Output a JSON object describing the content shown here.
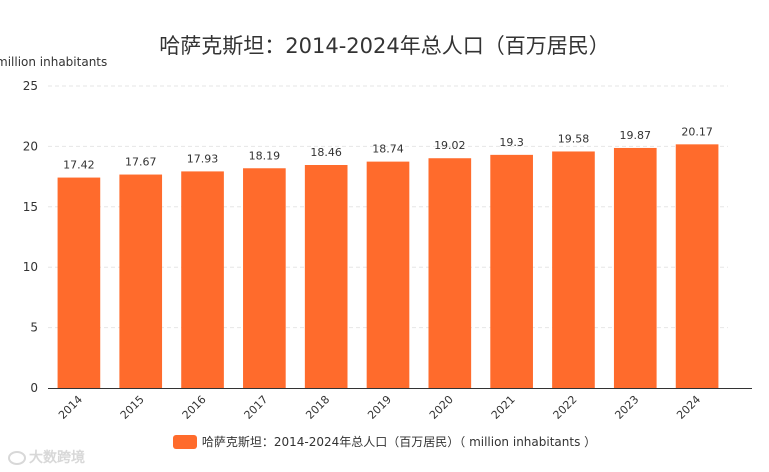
{
  "chart_data": {
    "type": "bar",
    "title": "哈萨克斯坦：2014-2024年总人口（百万居民）",
    "ylabel": "million inhabitants",
    "categories": [
      "2014",
      "2015",
      "2016",
      "2017",
      "2018",
      "2019",
      "2020",
      "2021",
      "2022",
      "2023",
      "2024"
    ],
    "values": [
      17.42,
      17.67,
      17.93,
      18.19,
      18.46,
      18.74,
      19.02,
      19.3,
      19.58,
      19.87,
      20.17
    ],
    "value_labels": [
      "17.42",
      "17.67",
      "17.93",
      "18.19",
      "18.46",
      "18.74",
      "19.02",
      "19.3",
      "19.58",
      "19.87",
      "20.17"
    ],
    "ylim": [
      0,
      25
    ],
    "yticks": [
      "0",
      "5",
      "10",
      "15",
      "20",
      "25"
    ],
    "grid": true,
    "legend": {
      "position": "bottom",
      "label": "哈萨克斯坦：2014-2024年总人口（百万居民）（ million inhabitants ）"
    },
    "colors": {
      "bar": "#ff6b2c"
    }
  },
  "watermark": {
    "icon": "logo-icon",
    "text": "大数跨境"
  }
}
